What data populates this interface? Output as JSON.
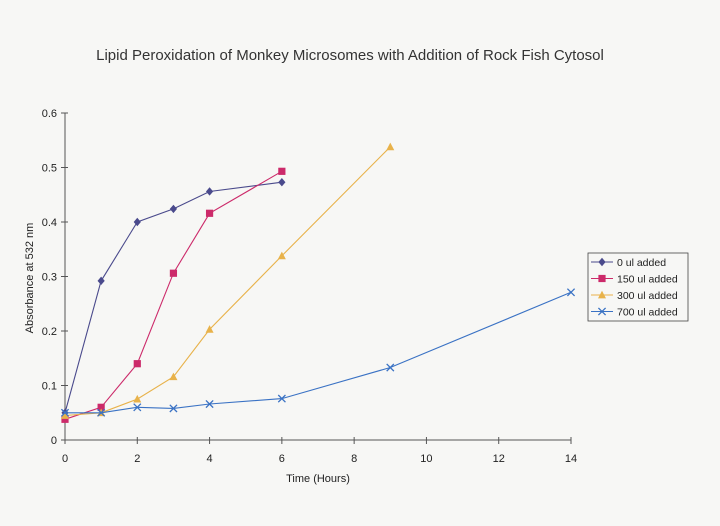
{
  "chart_data": {
    "type": "line",
    "title": "Lipid Peroxidation of Monkey Microsomes with Addition of Rock Fish Cytosol",
    "xlabel": "Time (Hours)",
    "ylabel": "Absorbance at 532 nm",
    "xlim": [
      0,
      14
    ],
    "ylim": [
      0,
      0.6
    ],
    "xticks": [
      "0",
      "2",
      "4",
      "6",
      "8",
      "10",
      "12",
      "14"
    ],
    "yticks": [
      "0",
      "0.1",
      "0.2",
      "0.3",
      "0.4",
      "0.5",
      "0.6"
    ],
    "grid": false,
    "legend_position": "right",
    "series": [
      {
        "name": "0 ul added",
        "color": "#4a4a8c",
        "marker": "diamond",
        "x": [
          0,
          1,
          2,
          3,
          4,
          6
        ],
        "y": [
          0.05,
          0.292,
          0.4,
          0.424,
          0.456,
          0.473
        ]
      },
      {
        "name": "150 ul added",
        "color": "#cc2a6a",
        "marker": "square",
        "x": [
          0,
          1,
          2,
          3,
          4,
          6
        ],
        "y": [
          0.038,
          0.06,
          0.14,
          0.306,
          0.416,
          0.493
        ]
      },
      {
        "name": "300 ul added",
        "color": "#e8b24a",
        "marker": "triangle",
        "x": [
          0,
          1,
          2,
          3,
          4,
          6,
          9
        ],
        "y": [
          0.045,
          0.05,
          0.075,
          0.116,
          0.203,
          0.338,
          0.538
        ]
      },
      {
        "name": "700 ul added",
        "color": "#3a72c4",
        "marker": "x",
        "x": [
          0,
          1,
          2,
          3,
          4,
          6,
          9,
          14
        ],
        "y": [
          0.05,
          0.05,
          0.06,
          0.058,
          0.066,
          0.076,
          0.133,
          0.271
        ]
      }
    ]
  }
}
